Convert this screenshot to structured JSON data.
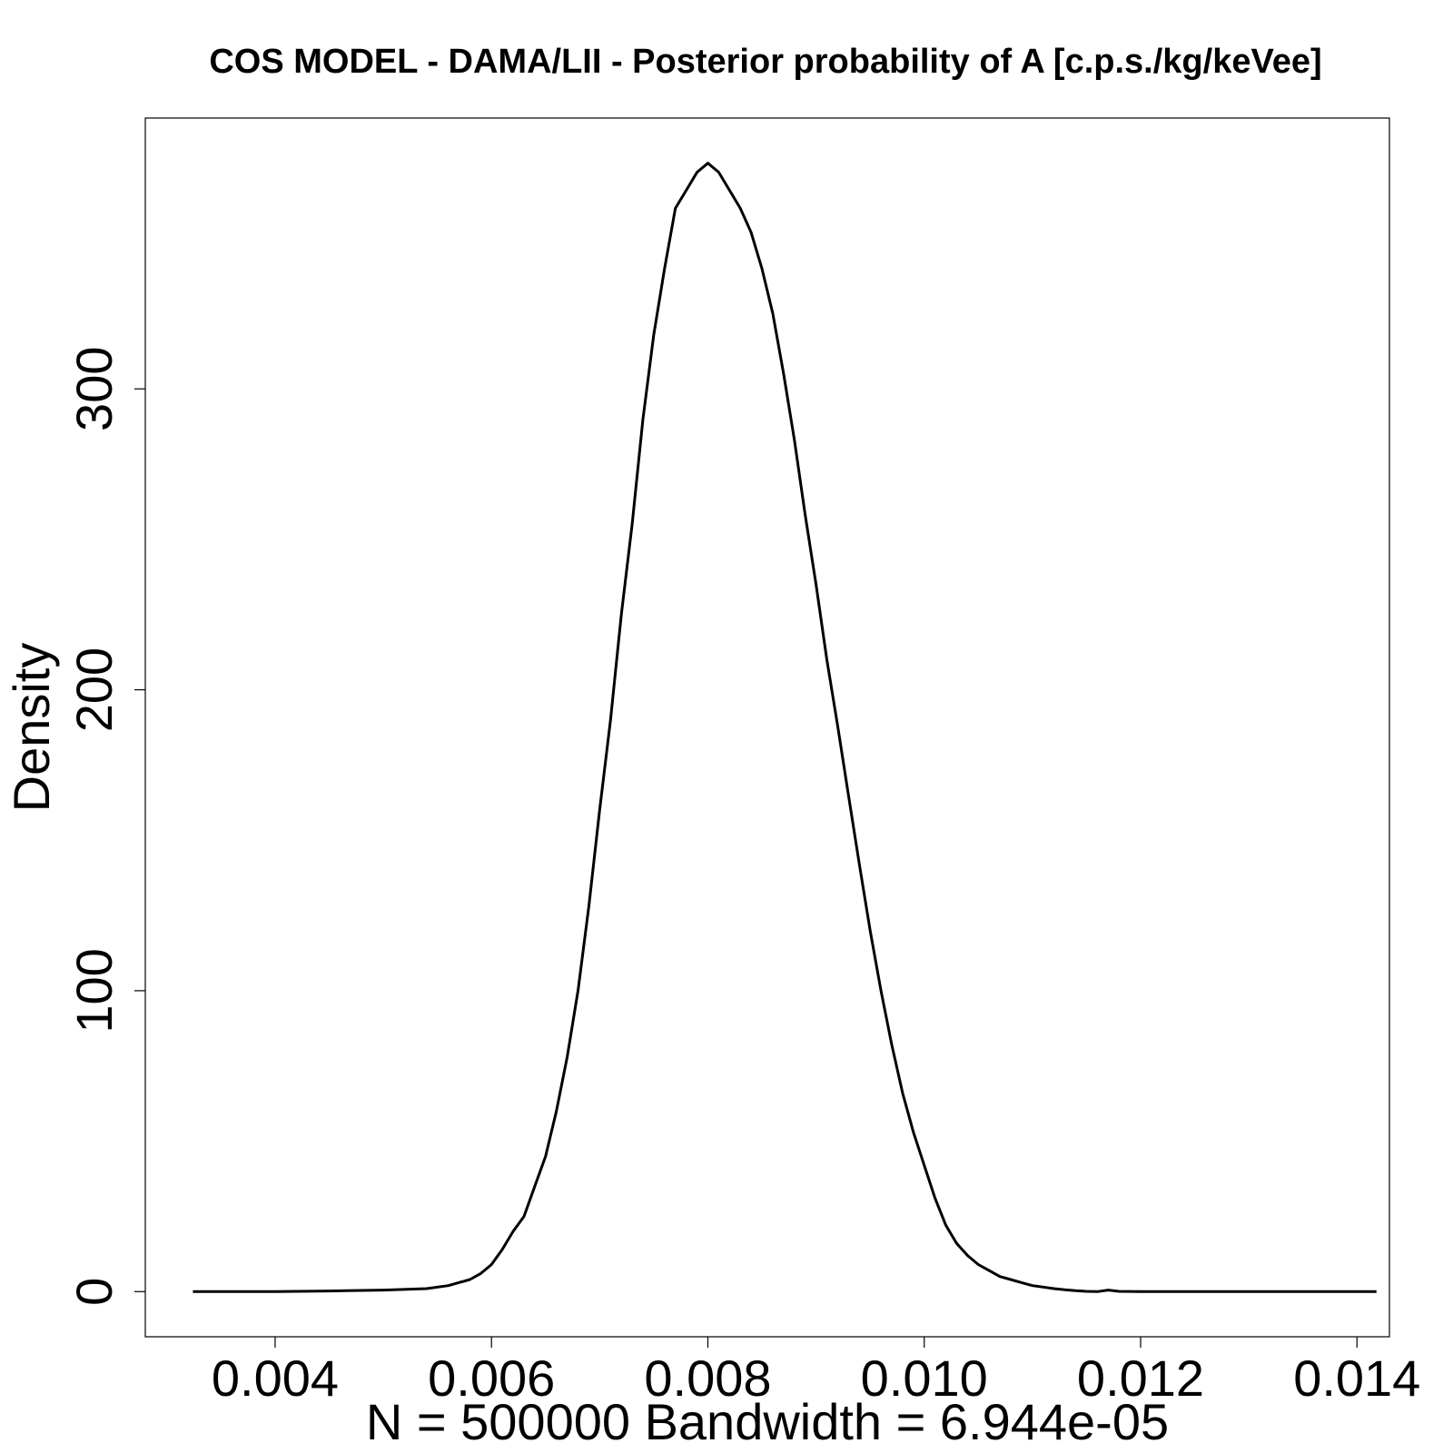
{
  "chart_data": {
    "type": "line",
    "title": "COS MODEL - DAMA/LII - Posterior probability of A [c.p.s./kg/keVee]",
    "xlabel": "N = 500000   Bandwidth = 6.944e-05",
    "ylabel": "Density",
    "xlim": [
      0.0028,
      0.0143
    ],
    "ylim": [
      -15,
      390
    ],
    "x_ticks": [
      0.004,
      0.006,
      0.008,
      0.01,
      0.012,
      0.014
    ],
    "x_tick_labels": [
      "0.004",
      "0.006",
      "0.008",
      "0.010",
      "0.012",
      "0.014"
    ],
    "y_ticks": [
      0,
      100,
      200,
      300
    ],
    "y_tick_labels": [
      "0",
      "100",
      "200",
      "300"
    ],
    "series": [
      {
        "name": "density",
        "x": [
          0.00324,
          0.004,
          0.0045,
          0.005,
          0.0054,
          0.0056,
          0.0058,
          0.0059,
          0.006,
          0.0061,
          0.0062,
          0.0063,
          0.0064,
          0.0065,
          0.0066,
          0.0067,
          0.0068,
          0.0069,
          0.007,
          0.0071,
          0.0072,
          0.0073,
          0.0074,
          0.0075,
          0.0076,
          0.0077,
          0.0078,
          0.0079,
          0.008,
          0.0081,
          0.0082,
          0.0083,
          0.0084,
          0.0085,
          0.0086,
          0.0087,
          0.0088,
          0.0089,
          0.009,
          0.0091,
          0.0092,
          0.0093,
          0.0094,
          0.0095,
          0.0096,
          0.0097,
          0.0098,
          0.0099,
          0.01,
          0.0101,
          0.0102,
          0.0103,
          0.0104,
          0.0105,
          0.0106,
          0.0107,
          0.0108,
          0.0109,
          0.011,
          0.0111,
          0.0112,
          0.0113,
          0.0114,
          0.0115,
          0.0116,
          0.0117,
          0.0118,
          0.0119,
          0.012,
          0.0121,
          0.0122,
          0.0123,
          0.0124,
          0.0125,
          0.0126,
          0.0128,
          0.013,
          0.0133,
          0.0136,
          0.01418
        ],
        "values": [
          0,
          0,
          0.2,
          0.5,
          1,
          2,
          4,
          6,
          9,
          14,
          20,
          25,
          35,
          45,
          60,
          78,
          100,
          128,
          160,
          190,
          225,
          255,
          290,
          318,
          340,
          360,
          366,
          372,
          375,
          372,
          366,
          360,
          352,
          340,
          325,
          305,
          283,
          258,
          235,
          210,
          188,
          165,
          142,
          120,
          100,
          82,
          66,
          53,
          42,
          31,
          22,
          16,
          12,
          9,
          7,
          5,
          4,
          3,
          2,
          1.5,
          1,
          0.6,
          0.3,
          0.1,
          0,
          0.5,
          0.1,
          0.05,
          0,
          0,
          0,
          0,
          0,
          0,
          0,
          0,
          0,
          0,
          0,
          0
        ]
      }
    ]
  }
}
